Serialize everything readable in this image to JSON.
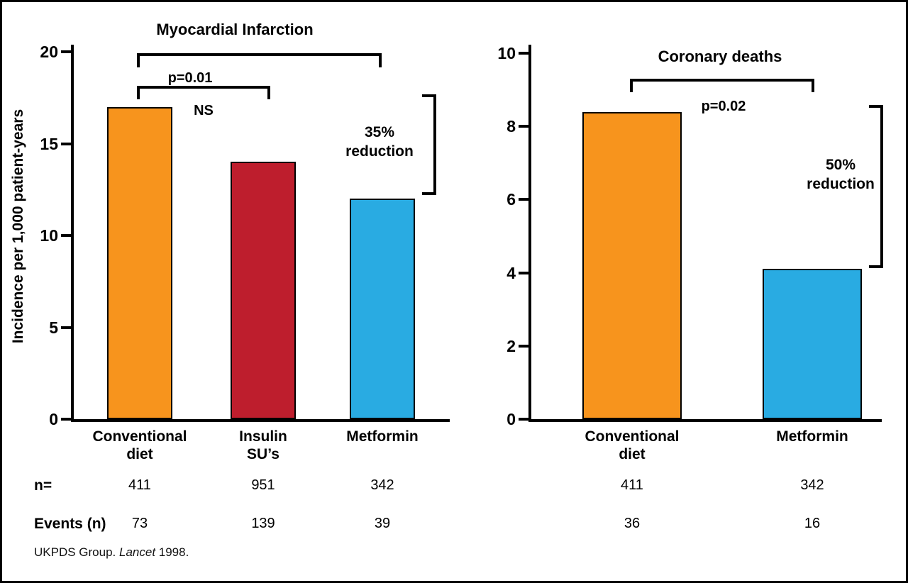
{
  "chart_data": [
    {
      "type": "bar",
      "title": "Myocardial Infarction",
      "ylabel": "Incidence per 1,000 patient-years",
      "xlabel": "",
      "ylim": [
        0,
        20
      ],
      "yticks": [
        0,
        5,
        10,
        15,
        20
      ],
      "grid": false,
      "legend": "none",
      "categories": [
        "Conventional\ndiet",
        "Insulin\nSU’s",
        "Metformin"
      ],
      "values": [
        17,
        14,
        12
      ],
      "bar_colors": [
        "#F7941D",
        "#BE1E2D",
        "#29ABE2"
      ],
      "n": [
        "411",
        "951",
        "342"
      ],
      "events": [
        "73",
        "139",
        "39"
      ],
      "annotations": [
        {
          "type": "significance-bracket",
          "label": "p=0.01",
          "from": "Conventional diet",
          "to": "Metformin"
        },
        {
          "type": "significance-bracket",
          "label": "NS",
          "from": "Conventional diet",
          "to": "Insulin SU’s"
        },
        {
          "type": "reduction-bracket",
          "label": "35%\nreduction",
          "applies_to": "Metformin"
        }
      ]
    },
    {
      "type": "bar",
      "title": "Coronary deaths",
      "ylabel": "Incidence per 1,000 patient-years",
      "xlabel": "",
      "ylim": [
        0,
        10
      ],
      "yticks": [
        0,
        2,
        4,
        6,
        8,
        10
      ],
      "grid": false,
      "legend": "none",
      "categories": [
        "Conventional\ndiet",
        "Metformin"
      ],
      "values": [
        8.4,
        4.1
      ],
      "bar_colors": [
        "#F7941D",
        "#29ABE2"
      ],
      "n": [
        "411",
        "342"
      ],
      "events": [
        "36",
        "16"
      ],
      "annotations": [
        {
          "type": "significance-bracket",
          "label": "p=0.02",
          "from": "Conventional diet",
          "to": "Metformin"
        },
        {
          "type": "reduction-bracket",
          "label": "50%\nreduction",
          "applies_to": "Metformin"
        }
      ]
    }
  ],
  "table": {
    "n_label": "n=",
    "events_label": "Events (n)"
  },
  "footer": {
    "prefix": "UKPDS Group. ",
    "journal": "Lancet",
    "suffix": " 1998."
  }
}
